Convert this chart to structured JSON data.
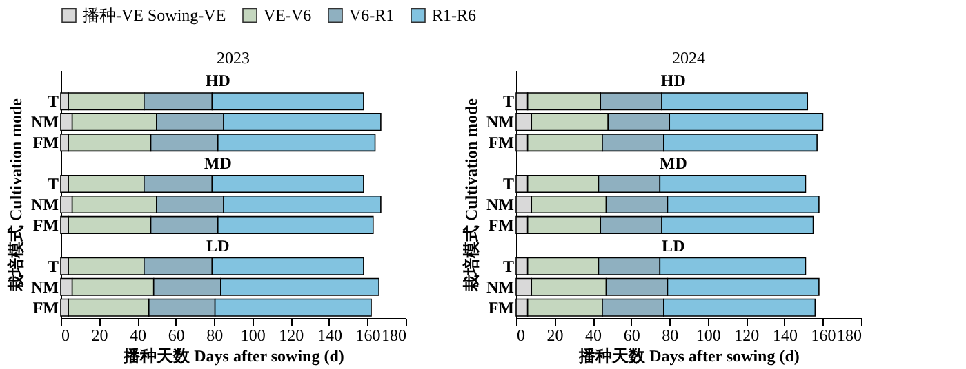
{
  "chart_data": [
    {
      "type": "bar",
      "orientation": "horizontal",
      "stacked": true,
      "title": "2023",
      "xlabel": "播种天数 Days after sowing (d)",
      "ylabel": "栽培模式 Cultivation mode",
      "categories": [
        "T",
        "NM",
        "FM",
        "T",
        "NM",
        "FM",
        "T",
        "NM",
        "FM"
      ],
      "annotations": [
        "HD",
        "MD",
        "LD"
      ],
      "series": [
        {
          "name": "播种-VE Sowing-VE",
          "color": "#d9d9d9",
          "values": [
            4,
            6,
            4,
            4,
            6,
            4,
            4,
            6,
            4
          ]
        },
        {
          "name": "VE-V6",
          "color": "#c5d7bf",
          "values": [
            39.5,
            44,
            43,
            39.5,
            44,
            43,
            39.5,
            42.5,
            42
          ]
        },
        {
          "name": "V6-R1",
          "color": "#8fb0c0",
          "values": [
            35.5,
            35,
            35,
            35.5,
            35,
            35,
            35.5,
            35,
            34.5
          ]
        },
        {
          "name": "R1-R6",
          "color": "#82c3e0",
          "values": [
            79,
            82,
            82,
            79,
            82,
            81,
            79,
            82.5,
            81.5
          ]
        }
      ],
      "xlim": [
        0,
        180
      ],
      "xticks": [
        0,
        20,
        40,
        60,
        80,
        100,
        120,
        140,
        160,
        180
      ],
      "grid": false,
      "legend": "top"
    },
    {
      "type": "bar",
      "orientation": "horizontal",
      "stacked": true,
      "title": "2024",
      "xlabel": "播种天数 Days after sowing (d)",
      "ylabel": "栽培模式 Cultivation mode",
      "categories": [
        "T",
        "NM",
        "FM",
        "T",
        "NM",
        "FM",
        "T",
        "NM",
        "FM"
      ],
      "annotations": [
        "HD",
        "MD",
        "LD"
      ],
      "series": [
        {
          "name": "播种-VE Sowing-VE",
          "color": "#d9d9d9",
          "values": [
            6,
            8,
            6,
            6,
            8,
            6,
            6,
            8,
            6
          ]
        },
        {
          "name": "VE-V6",
          "color": "#c5d7bf",
          "values": [
            38,
            40,
            39,
            37,
            39,
            38,
            37,
            39,
            39
          ]
        },
        {
          "name": "V6-R1",
          "color": "#8fb0c0",
          "values": [
            32,
            32,
            32,
            32,
            32,
            32,
            32,
            32,
            32
          ]
        },
        {
          "name": "R1-R6",
          "color": "#82c3e0",
          "values": [
            76,
            80,
            80,
            76,
            79,
            79,
            76,
            79,
            79
          ]
        }
      ],
      "xlim": [
        0,
        180
      ],
      "xticks": [
        0,
        20,
        40,
        60,
        80,
        100,
        120,
        140,
        160,
        180
      ],
      "grid": false,
      "legend": "top"
    }
  ]
}
